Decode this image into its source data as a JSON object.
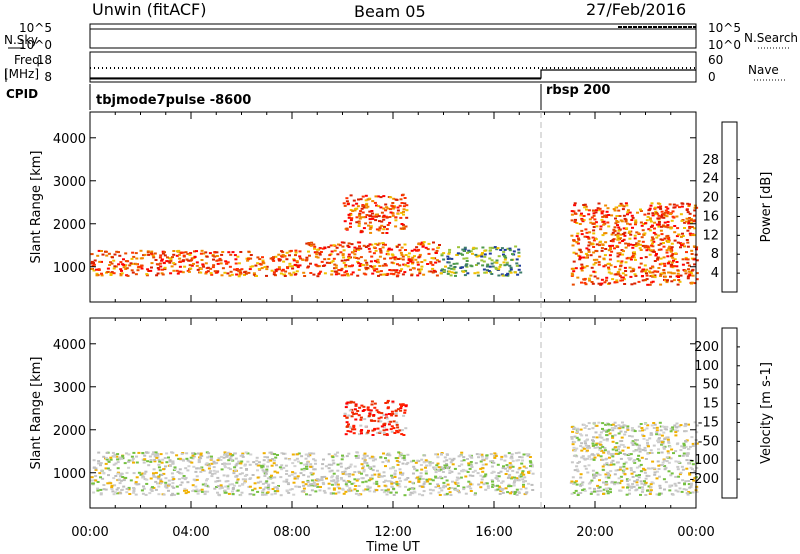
{
  "header": {
    "site": "Unwin (fitACF)",
    "beam": "Beam 05",
    "date": "27/Feb/2016"
  },
  "top_panels": {
    "nsky_label": "N.Sky",
    "nsky_ticks": [
      "10^5",
      "10^0"
    ],
    "nsearch_label": "N.Search",
    "nsearch_ticks": [
      "10^5",
      "10^0"
    ],
    "freq_label_line1": "Freq.",
    "freq_label_line2": "[MHz]",
    "freq_ticks": [
      "18",
      "8"
    ],
    "nave_label": "Nave",
    "nave_ticks": [
      "60",
      "0"
    ],
    "cpid_label": "CPID",
    "cpid_mode_1": "tbjmode7pulse -8600",
    "cpid_mode_2": "rbsp 200"
  },
  "chart_data": [
    {
      "type": "heatmap",
      "panel": "power",
      "ylabel": "Slant Range [km]",
      "xlabel": "",
      "xlim_hours": [
        0,
        24
      ],
      "ylim": [
        180,
        4600
      ],
      "y_ticks": [
        "1000",
        "2000",
        "3000",
        "4000"
      ],
      "y_tick_values": [
        1000,
        2000,
        3000,
        4000
      ],
      "x_tick_labels": [
        "00:00",
        "04:00",
        "08:00",
        "12:00",
        "16:00",
        "20:00",
        "00:00"
      ],
      "colorbar_label": "Power [dB]",
      "colorbar_ticks": [
        "4",
        "8",
        "12",
        "16",
        "20",
        "24",
        "28"
      ],
      "colorbar_colors": [
        "#0000ff",
        "#1e3c9a",
        "#3e7d6b",
        "#4d9a4a",
        "#9cc53a",
        "#f0c000",
        "#f08a00",
        "#e84a00",
        "#ff0000"
      ],
      "features": [
        {
          "t_start": 0.0,
          "t_end": 8.5,
          "range_low": 800,
          "range_high": 1400,
          "level": "high"
        },
        {
          "t_start": 8.5,
          "t_end": 13.8,
          "range_low": 800,
          "range_high": 1600,
          "level": "high"
        },
        {
          "t_start": 10.0,
          "t_end": 12.5,
          "range_low": 1800,
          "range_high": 2700,
          "level": "high"
        },
        {
          "t_start": 13.8,
          "t_end": 17.0,
          "range_low": 800,
          "range_high": 1500,
          "level": "medium"
        },
        {
          "t_start": 19.0,
          "t_end": 24.0,
          "range_low": 600,
          "range_high": 2500,
          "level": "high"
        }
      ]
    },
    {
      "type": "heatmap",
      "panel": "velocity",
      "ylabel": "Slant Range [km]",
      "xlabel": "Time UT",
      "xlim_hours": [
        0,
        24
      ],
      "ylim": [
        180,
        4600
      ],
      "y_ticks": [
        "1000",
        "2000",
        "3000",
        "4000"
      ],
      "y_tick_values": [
        1000,
        2000,
        3000,
        4000
      ],
      "x_tick_labels": [
        "00:00",
        "04:00",
        "08:00",
        "12:00",
        "16:00",
        "20:00",
        "00:00"
      ],
      "colorbar_label": "Velocity [m s-1]",
      "colorbar_ticks": [
        "200",
        "100",
        "50",
        "15",
        "-15",
        "-50",
        "-100",
        "-200"
      ],
      "colorbar_colors": [
        "#1e3c9a",
        "#2f6f8a",
        "#3e8e5a",
        "#74c040",
        "#c8c8c8",
        "#f0b000",
        "#f07000",
        "#e83000",
        "#ff0000"
      ],
      "features": [
        {
          "t_start": 0.0,
          "t_end": 17.5,
          "range_low": 500,
          "range_high": 1500,
          "level": "gray"
        },
        {
          "t_start": 10.0,
          "t_end": 12.5,
          "range_low": 1900,
          "range_high": 2700,
          "level": "red"
        },
        {
          "t_start": 19.0,
          "t_end": 24.0,
          "range_low": 500,
          "range_high": 2200,
          "level": "gray"
        }
      ]
    }
  ]
}
